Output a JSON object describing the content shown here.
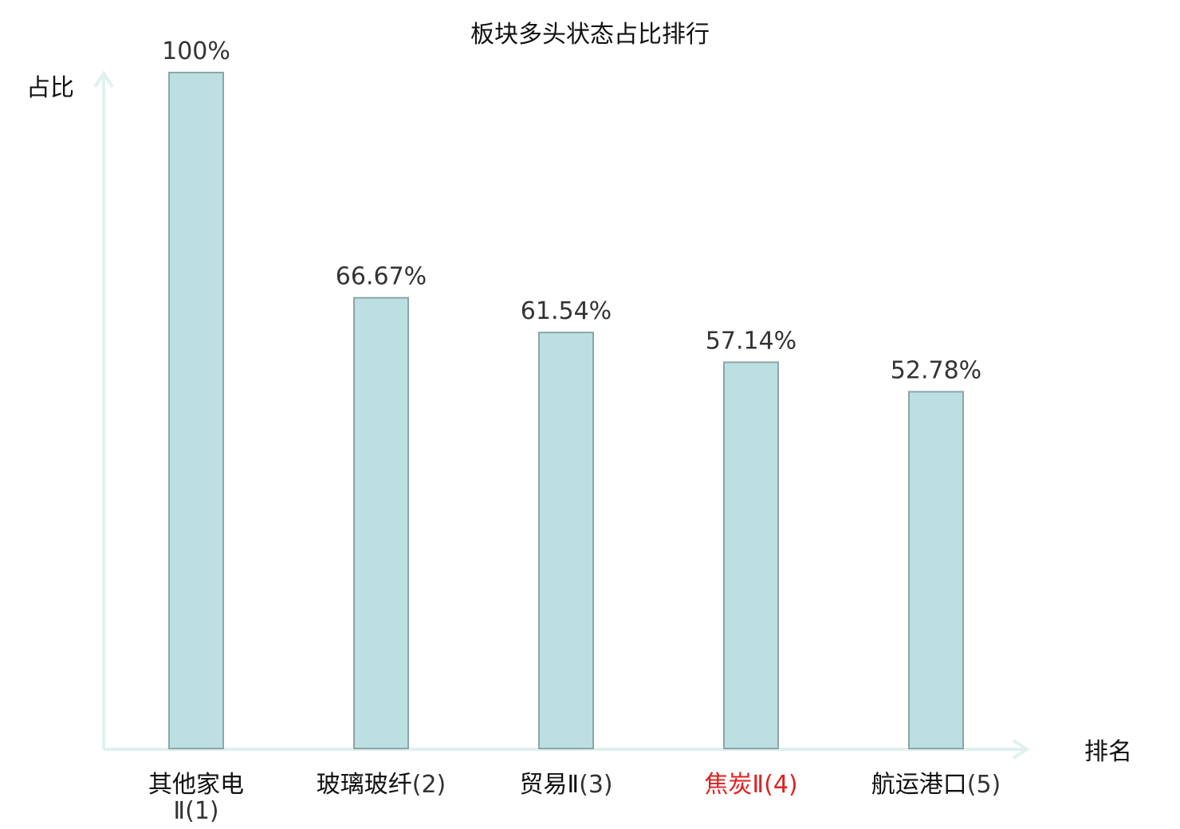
{
  "chart_data": {
    "type": "bar",
    "title": "板块多头状态占比排行",
    "xlabel": "排名",
    "ylabel": "占比",
    "categories": [
      "其他家电Ⅱ",
      "玻璃玻纤",
      "贸易Ⅱ",
      "焦炭Ⅱ",
      "航运港口"
    ],
    "ranks": [
      "(1)",
      "(2)",
      "(3)",
      "(4)",
      "(5)"
    ],
    "values": [
      100,
      66.67,
      61.54,
      57.14,
      52.78
    ],
    "value_labels": [
      "100%",
      "66.67%",
      "61.54%",
      "57.14%",
      "52.78%"
    ],
    "highlight_index": 3,
    "ylim": [
      0,
      100
    ],
    "grid": false,
    "colors": {
      "bar_fill": "#bce0e1",
      "bar_stroke": "#8aa6a8",
      "axis": "#dff1ef",
      "highlight_text": "#e02020",
      "text": "#111111"
    }
  }
}
